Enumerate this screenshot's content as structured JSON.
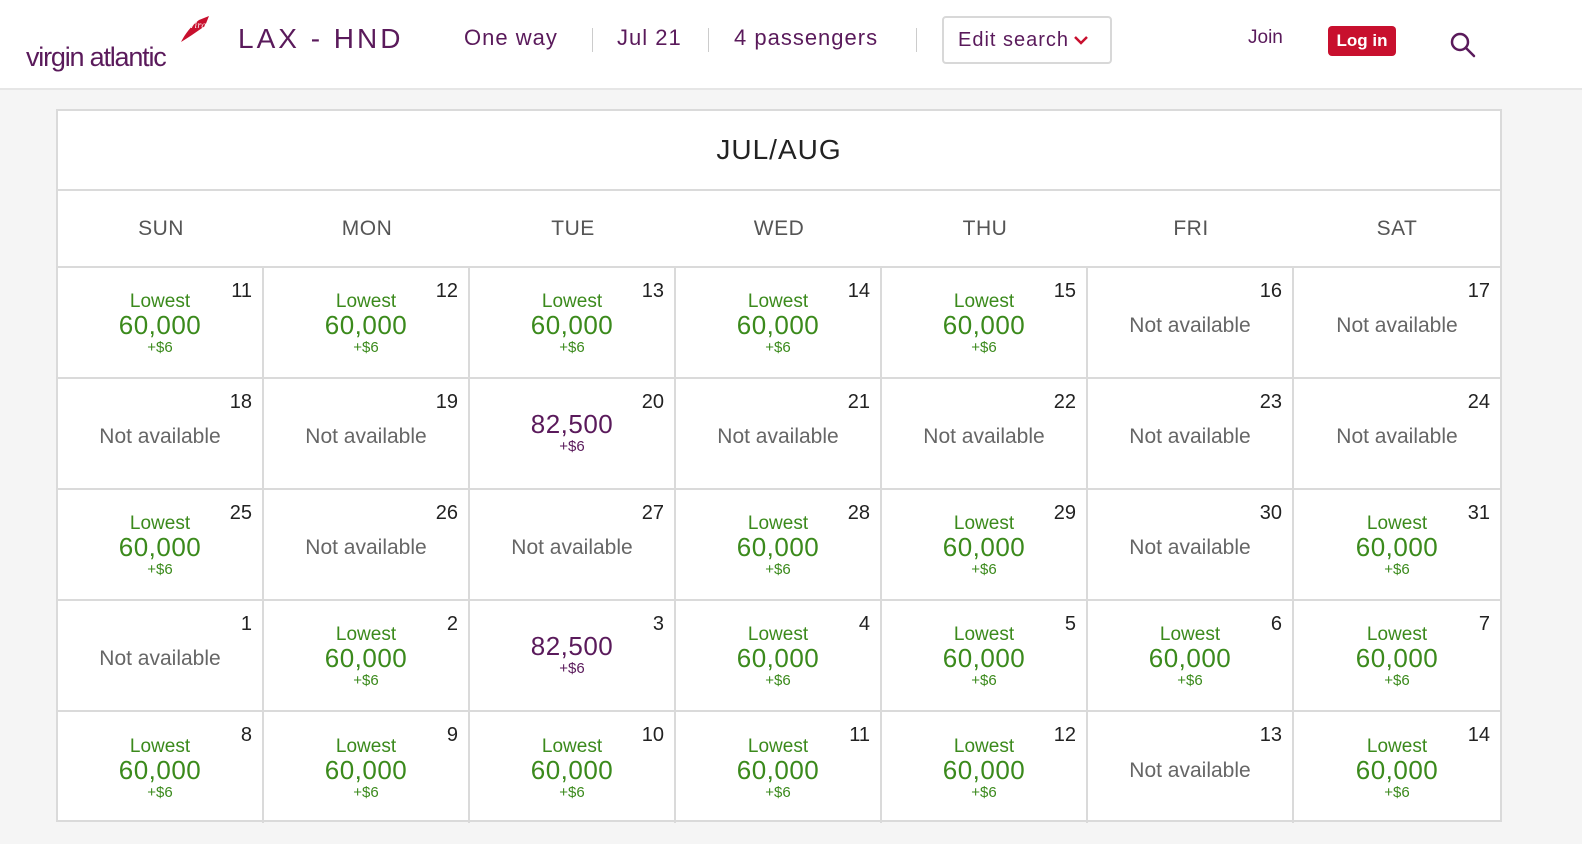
{
  "header": {
    "logo_text": "virgin atlantic",
    "logo_sub": "Virgin",
    "route": "LAX - HND",
    "trip_type": "One way",
    "date": "Jul 21",
    "passengers": "4 passengers",
    "edit_search": "Edit search",
    "join": "Join",
    "login": "Log in"
  },
  "calendar": {
    "month": "JUL/AUG",
    "days_of_week": [
      "SUN",
      "MON",
      "TUE",
      "WED",
      "THU",
      "FRI",
      "SAT"
    ],
    "cells": [
      {
        "day": "11",
        "status": "lowest",
        "label": "Lowest",
        "points": "60,000",
        "fee": "+$6"
      },
      {
        "day": "12",
        "status": "lowest",
        "label": "Lowest",
        "points": "60,000",
        "fee": "+$6"
      },
      {
        "day": "13",
        "status": "lowest",
        "label": "Lowest",
        "points": "60,000",
        "fee": "+$6"
      },
      {
        "day": "14",
        "status": "lowest",
        "label": "Lowest",
        "points": "60,000",
        "fee": "+$6"
      },
      {
        "day": "15",
        "status": "lowest",
        "label": "Lowest",
        "points": "60,000",
        "fee": "+$6"
      },
      {
        "day": "16",
        "status": "na",
        "text": "Not available"
      },
      {
        "day": "17",
        "status": "na",
        "text": "Not available"
      },
      {
        "day": "18",
        "status": "na",
        "text": "Not available"
      },
      {
        "day": "19",
        "status": "na",
        "text": "Not available"
      },
      {
        "day": "20",
        "status": "price",
        "points": "82,500",
        "fee": "+$6"
      },
      {
        "day": "21",
        "status": "na",
        "text": "Not available"
      },
      {
        "day": "22",
        "status": "na",
        "text": "Not available"
      },
      {
        "day": "23",
        "status": "na",
        "text": "Not available"
      },
      {
        "day": "24",
        "status": "na",
        "text": "Not available"
      },
      {
        "day": "25",
        "status": "lowest",
        "label": "Lowest",
        "points": "60,000",
        "fee": "+$6"
      },
      {
        "day": "26",
        "status": "na",
        "text": "Not available"
      },
      {
        "day": "27",
        "status": "na",
        "text": "Not available"
      },
      {
        "day": "28",
        "status": "lowest",
        "label": "Lowest",
        "points": "60,000",
        "fee": "+$6"
      },
      {
        "day": "29",
        "status": "lowest",
        "label": "Lowest",
        "points": "60,000",
        "fee": "+$6"
      },
      {
        "day": "30",
        "status": "na",
        "text": "Not available"
      },
      {
        "day": "31",
        "status": "lowest",
        "label": "Lowest",
        "points": "60,000",
        "fee": "+$6"
      },
      {
        "day": "1",
        "status": "na",
        "text": "Not available"
      },
      {
        "day": "2",
        "status": "lowest",
        "label": "Lowest",
        "points": "60,000",
        "fee": "+$6"
      },
      {
        "day": "3",
        "status": "price",
        "points": "82,500",
        "fee": "+$6"
      },
      {
        "day": "4",
        "status": "lowest",
        "label": "Lowest",
        "points": "60,000",
        "fee": "+$6"
      },
      {
        "day": "5",
        "status": "lowest",
        "label": "Lowest",
        "points": "60,000",
        "fee": "+$6"
      },
      {
        "day": "6",
        "status": "lowest",
        "label": "Lowest",
        "points": "60,000",
        "fee": "+$6"
      },
      {
        "day": "7",
        "status": "lowest",
        "label": "Lowest",
        "points": "60,000",
        "fee": "+$6"
      },
      {
        "day": "8",
        "status": "lowest",
        "label": "Lowest",
        "points": "60,000",
        "fee": "+$6"
      },
      {
        "day": "9",
        "status": "lowest",
        "label": "Lowest",
        "points": "60,000",
        "fee": "+$6"
      },
      {
        "day": "10",
        "status": "lowest",
        "label": "Lowest",
        "points": "60,000",
        "fee": "+$6"
      },
      {
        "day": "11",
        "status": "lowest",
        "label": "Lowest",
        "points": "60,000",
        "fee": "+$6"
      },
      {
        "day": "12",
        "status": "lowest",
        "label": "Lowest",
        "points": "60,000",
        "fee": "+$6"
      },
      {
        "day": "13",
        "status": "na",
        "text": "Not available"
      },
      {
        "day": "14",
        "status": "lowest",
        "label": "Lowest",
        "points": "60,000",
        "fee": "+$6"
      }
    ]
  },
  "colors": {
    "brand": "#5a1a5b",
    "lowest": "#3b8a1c",
    "login_bg": "#c8102e"
  },
  "icons": {
    "search": "search-icon",
    "chevron": "chevron-down-icon",
    "logo": "virgin-logo-icon"
  }
}
